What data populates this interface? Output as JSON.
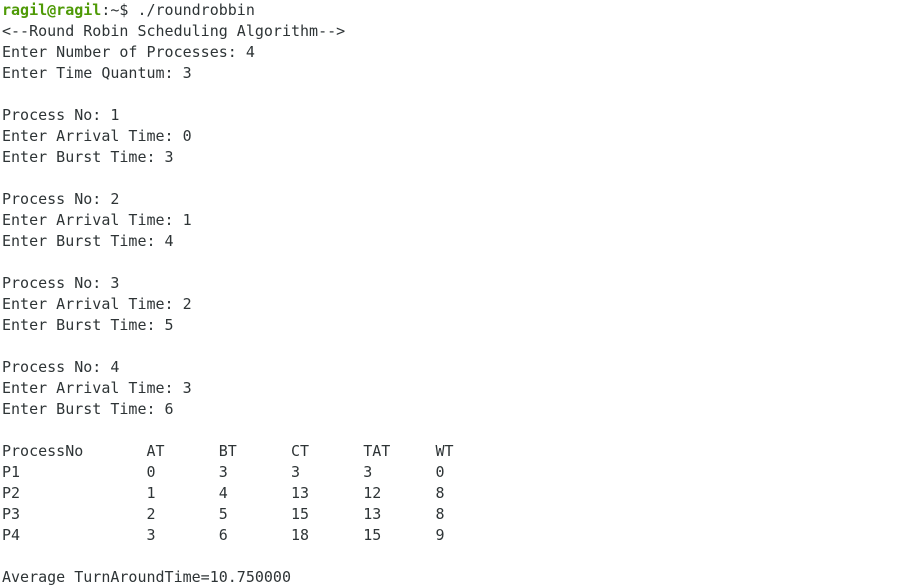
{
  "prompt": {
    "user": "ragil@ragil",
    "path": ":~$",
    "command": "./roundrobbin"
  },
  "lines": [
    "<--Round Robin Scheduling Algorithm-->",
    "Enter Number of Processes: 4",
    "Enter Time Quantum: 3"
  ],
  "processes": [
    [
      "Process No: 1",
      "Enter Arrival Time: 0",
      "Enter Burst Time: 3"
    ],
    [
      "Process No: 2",
      "Enter Arrival Time: 1",
      "Enter Burst Time: 4"
    ],
    [
      "Process No: 3",
      "Enter Arrival Time: 2",
      "Enter Burst Time: 5"
    ],
    [
      "Process No: 4",
      "Enter Arrival Time: 3",
      "Enter Burst Time: 6"
    ]
  ],
  "table": {
    "header": [
      "ProcessNo",
      "AT",
      "BT",
      "CT",
      "TAT",
      "WT"
    ],
    "rows": [
      [
        "P1",
        "0",
        "3",
        "3",
        "3",
        "0"
      ],
      [
        "P2",
        "1",
        "4",
        "13",
        "12",
        "8"
      ],
      [
        "P3",
        "2",
        "5",
        "15",
        "13",
        "8"
      ],
      [
        "P4",
        "3",
        "6",
        "18",
        "15",
        "9"
      ]
    ]
  },
  "footer": "Average TurnAroundTime=10.750000"
}
